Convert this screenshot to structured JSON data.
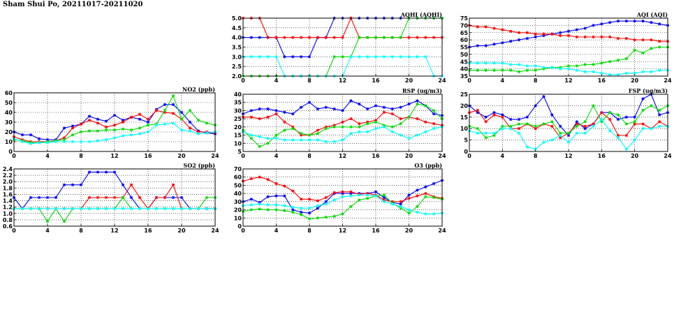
{
  "page": {
    "title": "Sham Shui Po, 20211017-20211020"
  },
  "colors": {
    "blue": "#0000ff",
    "red": "#ff0000",
    "green": "#00dd00",
    "cyan": "#00ffff"
  },
  "chart_data": [
    {
      "id": "aqhi",
      "type": "line",
      "title": "AQHI (AQHI)",
      "xlim": [
        0,
        24
      ],
      "xticks": [
        0,
        4,
        8,
        12,
        16,
        20,
        24
      ],
      "ylim": [
        2.0,
        5.0
      ],
      "yticks": [
        "2.0",
        "2.5",
        "3.0",
        "3.5",
        "4.0",
        "4.5",
        "5.0"
      ],
      "grid": true,
      "x": [
        0,
        1,
        2,
        3,
        4,
        5,
        6,
        7,
        8,
        9,
        10,
        11,
        12,
        13,
        14,
        15,
        16,
        17,
        18,
        19,
        20,
        21,
        22,
        23,
        24
      ],
      "series": [
        {
          "color": "blue",
          "values": [
            4,
            4,
            4,
            4,
            4,
            3,
            3,
            3,
            3,
            4,
            4,
            5,
            5,
            5,
            5,
            5,
            5,
            5,
            5,
            5,
            5,
            5,
            5,
            5,
            5
          ]
        },
        {
          "color": "red",
          "values": [
            5,
            5,
            5,
            4,
            4,
            4,
            4,
            4,
            4,
            4,
            4,
            4,
            4,
            5,
            4,
            4,
            4,
            4,
            4,
            4,
            4,
            4,
            4,
            4,
            4
          ]
        },
        {
          "color": "green",
          "values": [
            2,
            2,
            2,
            2,
            2,
            2,
            2,
            2,
            2,
            2,
            2,
            3,
            3,
            3,
            4,
            4,
            4,
            4,
            4,
            4,
            5,
            5,
            5,
            5,
            5
          ]
        },
        {
          "color": "cyan",
          "values": [
            3,
            3,
            3,
            3,
            3,
            2,
            2,
            2,
            2,
            2,
            2,
            2,
            2,
            3,
            3,
            3,
            3,
            3,
            3,
            3,
            3,
            3,
            3,
            2,
            2
          ]
        }
      ]
    },
    {
      "id": "aqi",
      "type": "line",
      "title": "AQI (AQI)",
      "xlim": [
        0,
        24
      ],
      "xticks": [
        0,
        4,
        8,
        12,
        16,
        20,
        24
      ],
      "ylim": [
        35,
        75
      ],
      "yticks": [
        "35",
        "40",
        "45",
        "50",
        "55",
        "60",
        "65",
        "70",
        "75"
      ],
      "grid": true,
      "x": [
        0,
        1,
        2,
        3,
        4,
        5,
        6,
        7,
        8,
        9,
        10,
        11,
        12,
        13,
        14,
        15,
        16,
        17,
        18,
        19,
        20,
        21,
        22,
        23,
        24
      ],
      "series": [
        {
          "color": "blue",
          "values": [
            55,
            56,
            56,
            57,
            58,
            59,
            60,
            61,
            62,
            63,
            64,
            65,
            66,
            67,
            68,
            70,
            71,
            72,
            73,
            73,
            73,
            73,
            72,
            71,
            70
          ]
        },
        {
          "color": "red",
          "values": [
            70,
            69,
            69,
            68,
            67,
            66,
            65,
            65,
            64,
            64,
            64,
            63,
            63,
            62,
            62,
            62,
            62,
            62,
            61,
            61,
            60,
            60,
            60,
            59,
            59
          ]
        },
        {
          "color": "green",
          "values": [
            39,
            39,
            39,
            39,
            39,
            39,
            38,
            39,
            39,
            40,
            41,
            41,
            42,
            42,
            43,
            43,
            44,
            45,
            46,
            47,
            53,
            51,
            54,
            55,
            55
          ]
        },
        {
          "color": "cyan",
          "values": [
            44,
            44,
            44,
            44,
            44,
            43,
            43,
            42,
            42,
            41,
            41,
            40,
            40,
            39,
            38,
            38,
            37,
            36,
            36,
            37,
            37,
            38,
            38,
            39,
            39
          ]
        }
      ]
    },
    {
      "id": "no2",
      "type": "line",
      "title": "NO2 (ppb)",
      "xlim": [
        0,
        24
      ],
      "xticks": [
        0,
        4,
        8,
        12,
        16,
        20,
        24
      ],
      "ylim": [
        0,
        60
      ],
      "yticks": [
        "0",
        "10",
        "20",
        "30",
        "40",
        "50",
        "60"
      ],
      "grid": true,
      "x": [
        0,
        1,
        2,
        3,
        4,
        5,
        6,
        7,
        8,
        9,
        10,
        11,
        12,
        13,
        14,
        15,
        16,
        17,
        18,
        19,
        20,
        21,
        22,
        23,
        24
      ],
      "series": [
        {
          "color": "blue",
          "values": [
            20,
            17,
            17,
            13,
            12,
            12,
            24,
            26,
            28,
            36,
            33,
            31,
            37,
            32,
            35,
            33,
            30,
            43,
            48,
            48,
            40,
            30,
            21,
            19,
            18
          ]
        },
        {
          "color": "red",
          "values": [
            15,
            12,
            10,
            10,
            10,
            11,
            14,
            24,
            28,
            32,
            29,
            25,
            27,
            30,
            35,
            38,
            33,
            42,
            40,
            39,
            33,
            24,
            20,
            20,
            19
          ]
        },
        {
          "color": "green",
          "values": [
            12,
            11,
            9,
            9,
            10,
            11,
            12,
            17,
            20,
            21,
            21,
            22,
            22,
            23,
            22,
            24,
            27,
            28,
            42,
            57,
            33,
            42,
            32,
            29,
            27
          ]
        },
        {
          "color": "cyan",
          "values": [
            13,
            10,
            8,
            9,
            9,
            10,
            10,
            10,
            10,
            10,
            11,
            12,
            14,
            16,
            17,
            18,
            20,
            27,
            28,
            29,
            22,
            21,
            18,
            19,
            20
          ]
        }
      ]
    },
    {
      "id": "rsp",
      "type": "line",
      "title": "RSP (ug/m3)",
      "xlim": [
        0,
        24
      ],
      "xticks": [
        0,
        4,
        8,
        12,
        16,
        20,
        24
      ],
      "ylim": [
        5,
        40
      ],
      "yticks": [
        "5",
        "10",
        "15",
        "20",
        "25",
        "30",
        "35",
        "40"
      ],
      "grid": true,
      "x": [
        0,
        1,
        2,
        3,
        4,
        5,
        6,
        7,
        8,
        9,
        10,
        11,
        12,
        13,
        14,
        15,
        16,
        17,
        18,
        19,
        20,
        21,
        22,
        23,
        24
      ],
      "series": [
        {
          "color": "blue",
          "values": [
            28,
            30,
            31,
            31,
            30,
            29,
            28,
            32,
            35,
            31,
            32,
            31,
            30,
            36,
            34,
            31,
            33,
            32,
            31,
            32,
            34,
            36,
            33,
            28,
            27
          ]
        },
        {
          "color": "red",
          "values": [
            26,
            26,
            25,
            26,
            28,
            23,
            20,
            15,
            15,
            18,
            20,
            21,
            23,
            25,
            22,
            23,
            24,
            29,
            28,
            25,
            26,
            25,
            23,
            22,
            21
          ]
        },
        {
          "color": "green",
          "values": [
            18,
            13,
            8,
            10,
            15,
            18,
            19,
            16,
            15,
            16,
            19,
            20,
            20,
            20,
            20,
            22,
            23,
            21,
            20,
            22,
            26,
            34,
            33,
            30,
            25
          ]
        },
        {
          "color": "cyan",
          "values": [
            17,
            15,
            14,
            13,
            13,
            12,
            12,
            12,
            12,
            12,
            11,
            11,
            12,
            16,
            17,
            17,
            19,
            20,
            17,
            15,
            13,
            15,
            17,
            19,
            20
          ]
        }
      ]
    },
    {
      "id": "fsp",
      "type": "line",
      "title": "FSP (ug/m3)",
      "xlim": [
        0,
        24
      ],
      "xticks": [
        0,
        4,
        8,
        12,
        16,
        20,
        24
      ],
      "ylim": [
        0,
        25
      ],
      "yticks": [
        "0",
        "5",
        "10",
        "15",
        "20",
        "25"
      ],
      "grid": true,
      "x": [
        0,
        1,
        2,
        3,
        4,
        5,
        6,
        7,
        8,
        9,
        10,
        11,
        12,
        13,
        14,
        15,
        16,
        17,
        18,
        19,
        20,
        21,
        22,
        23,
        24
      ],
      "series": [
        {
          "color": "blue",
          "values": [
            20,
            17,
            15,
            17,
            16,
            14,
            14,
            15,
            20,
            24,
            16,
            11,
            7,
            13,
            10,
            12,
            17,
            17,
            14,
            15,
            15,
            23,
            25,
            16,
            17
          ]
        },
        {
          "color": "red",
          "values": [
            17,
            18,
            13,
            16,
            15,
            10,
            10,
            12,
            10,
            12,
            11,
            6,
            8,
            12,
            11,
            12,
            17,
            14,
            7,
            7,
            12,
            12,
            10,
            13,
            11
          ]
        },
        {
          "color": "green",
          "values": [
            11,
            10,
            6,
            7,
            11,
            11,
            12,
            12,
            11,
            12,
            13,
            8,
            8,
            11,
            13,
            20,
            13,
            17,
            16,
            12,
            13,
            18,
            20,
            18,
            20
          ]
        },
        {
          "color": "cyan",
          "values": [
            9,
            8,
            8,
            8,
            10,
            10,
            8,
            2,
            1,
            4,
            5,
            7,
            4,
            8,
            8,
            11,
            14,
            9,
            6,
            1,
            5,
            10,
            10,
            11,
            11
          ]
        }
      ]
    },
    {
      "id": "so2",
      "type": "line",
      "title": "SO2 (ppb)",
      "xlim": [
        0,
        24
      ],
      "xticks": [
        0,
        4,
        8,
        12,
        16,
        20,
        24
      ],
      "ylim": [
        0.6,
        2.4
      ],
      "yticks": [
        "0.6",
        "0.8",
        "1.0",
        "1.2",
        "1.4",
        "1.6",
        "1.8",
        "2.0",
        "2.2",
        "2.4"
      ],
      "grid": true,
      "x": [
        0,
        1,
        2,
        3,
        4,
        5,
        6,
        7,
        8,
        9,
        10,
        11,
        12,
        13,
        14,
        15,
        16,
        17,
        18,
        19,
        20,
        21,
        22,
        23,
        24
      ],
      "series": [
        {
          "color": "blue",
          "values": [
            1.5,
            1.15,
            1.5,
            1.5,
            1.5,
            1.5,
            1.9,
            1.9,
            1.9,
            2.3,
            2.3,
            2.3,
            2.3,
            1.9,
            1.5,
            1.15,
            1.15,
            1.5,
            1.5,
            1.5,
            1.5,
            1.15,
            1.15,
            1.15,
            1.15
          ]
        },
        {
          "color": "red",
          "values": [
            1.15,
            1.15,
            1.15,
            1.15,
            1.15,
            1.15,
            1.15,
            1.15,
            1.15,
            1.5,
            1.5,
            1.5,
            1.5,
            1.5,
            1.9,
            1.5,
            1.15,
            1.5,
            1.5,
            1.9,
            1.15,
            1.15,
            1.15,
            1.15,
            1.15
          ]
        },
        {
          "color": "green",
          "values": [
            1.15,
            1.15,
            1.15,
            1.15,
            0.75,
            1.15,
            0.75,
            1.15,
            1.15,
            1.15,
            1.15,
            1.15,
            1.15,
            1.5,
            1.15,
            1.15,
            1.15,
            1.15,
            1.15,
            1.15,
            1.15,
            1.15,
            1.15,
            1.5,
            1.5
          ]
        },
        {
          "color": "cyan",
          "values": [
            1.15,
            1.15,
            1.15,
            1.15,
            1.15,
            1.15,
            1.15,
            1.15,
            1.15,
            1.15,
            1.15,
            1.15,
            1.15,
            1.15,
            1.15,
            1.15,
            1.15,
            1.15,
            1.15,
            1.15,
            1.15,
            1.15,
            1.15,
            1.15,
            1.15
          ]
        }
      ]
    },
    {
      "id": "o3",
      "type": "line",
      "title": "O3 (ppb)",
      "xlim": [
        0,
        24
      ],
      "xticks": [
        0,
        4,
        8,
        12,
        16,
        20,
        24
      ],
      "ylim": [
        0,
        70
      ],
      "yticks": [
        "0",
        "10",
        "20",
        "30",
        "40",
        "50",
        "60",
        "70"
      ],
      "grid": true,
      "x": [
        0,
        1,
        2,
        3,
        4,
        5,
        6,
        7,
        8,
        9,
        10,
        11,
        12,
        13,
        14,
        15,
        16,
        17,
        18,
        19,
        20,
        21,
        22,
        23,
        24
      ],
      "series": [
        {
          "color": "blue",
          "values": [
            30,
            33,
            29,
            36,
            37,
            37,
            20,
            17,
            16,
            22,
            30,
            40,
            40,
            40,
            40,
            40,
            42,
            35,
            29,
            27,
            38,
            44,
            48,
            52,
            56
          ]
        },
        {
          "color": "red",
          "values": [
            55,
            58,
            60,
            57,
            52,
            49,
            43,
            33,
            33,
            31,
            35,
            41,
            42,
            42,
            39,
            40,
            38,
            32,
            30,
            30,
            34,
            37,
            40,
            36,
            34
          ]
        },
        {
          "color": "green",
          "values": [
            18,
            20,
            21,
            20,
            20,
            19,
            17,
            14,
            9,
            10,
            11,
            12,
            15,
            24,
            32,
            34,
            37,
            38,
            28,
            22,
            16,
            24,
            36,
            35,
            33
          ]
        },
        {
          "color": "cyan",
          "values": [
            25,
            26,
            27,
            26,
            26,
            25,
            23,
            22,
            22,
            25,
            27,
            32,
            36,
            37,
            38,
            38,
            37,
            30,
            27,
            24,
            20,
            17,
            15,
            15,
            16
          ]
        }
      ]
    }
  ]
}
